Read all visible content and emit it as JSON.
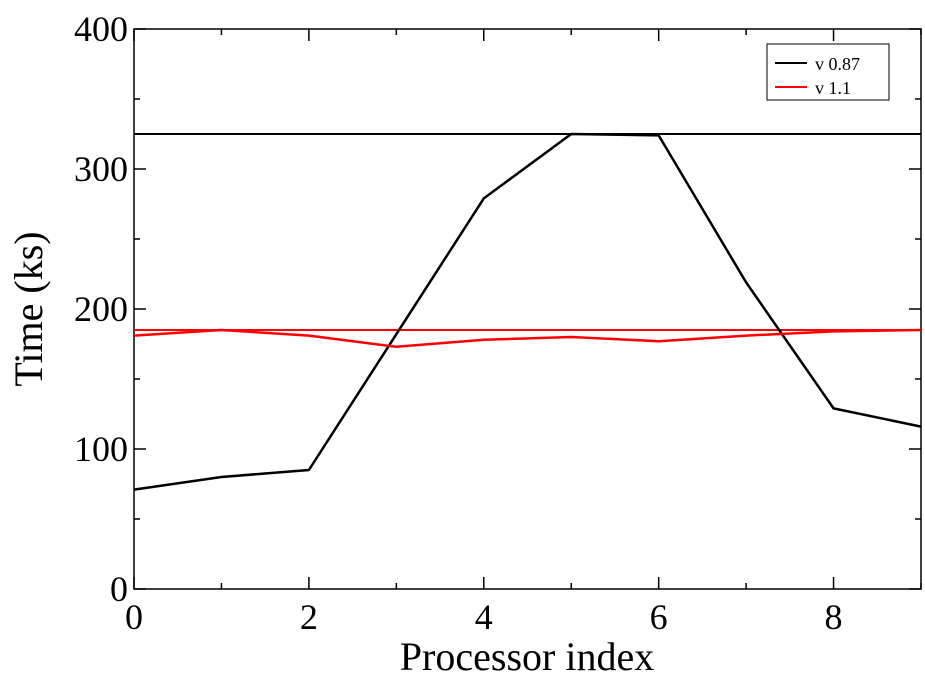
{
  "chart_data": {
    "type": "line",
    "title": "",
    "xlabel": "Processor index",
    "ylabel": "Time (ks)",
    "xlim": [
      0,
      9
    ],
    "ylim": [
      0,
      400
    ],
    "x_ticks": [
      0,
      2,
      4,
      6,
      8
    ],
    "x_tick_labels": [
      "0",
      "2",
      "4",
      "6",
      "8"
    ],
    "y_ticks": [
      0,
      100,
      200,
      300,
      400
    ],
    "y_tick_labels": [
      "0",
      "100",
      "200",
      "300",
      "400"
    ],
    "grid": false,
    "legend_position": "top-right",
    "legend": [
      {
        "label": "v 0.87",
        "color": "#000000"
      },
      {
        "label": "v 1.1",
        "color": "#ff0000"
      }
    ],
    "series": [
      {
        "name": "v 0.87",
        "color": "#000000",
        "x": [
          0,
          1,
          2,
          3,
          4,
          5,
          6,
          7,
          8,
          9
        ],
        "y": [
          71,
          80,
          85,
          182,
          279,
          325,
          324,
          219,
          129,
          116
        ]
      },
      {
        "name": "v 1.1",
        "color": "#ff0000",
        "x": [
          0,
          1,
          2,
          3,
          4,
          5,
          6,
          7,
          8,
          9
        ],
        "y": [
          181,
          185,
          181,
          173,
          178,
          180,
          177,
          181,
          184,
          185
        ]
      }
    ],
    "reference_lines": [
      {
        "series": "v 0.87",
        "y": 325,
        "color": "#000000"
      },
      {
        "series": "v 1.1",
        "y": 185,
        "color": "#ff0000"
      }
    ]
  }
}
